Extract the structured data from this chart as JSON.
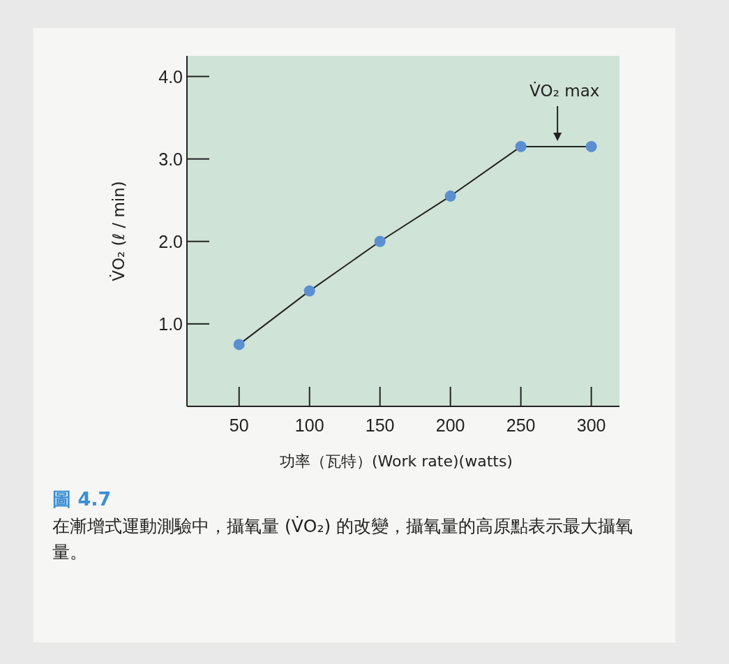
{
  "chart_data": {
    "type": "line",
    "xlabel": "功率（瓦特）(Work rate)(watts)",
    "ylabel": "V̇O₂ (ℓ / min)",
    "x": [
      50,
      100,
      150,
      200,
      250,
      300
    ],
    "series": [
      {
        "color": "#5b8fd0",
        "values": [
          0.75,
          1.4,
          2.0,
          2.55,
          3.15,
          3.15
        ]
      }
    ],
    "xlim": [
      13,
      320
    ],
    "ylim": [
      0,
      4.25
    ],
    "xticks": [
      50,
      100,
      150,
      200,
      250,
      300
    ],
    "yticks": [
      {
        "value": 1,
        "label": "1.0"
      },
      {
        "value": 2,
        "label": "2.0"
      },
      {
        "value": 3,
        "label": "3.0"
      },
      {
        "value": 4,
        "label": "4.0"
      }
    ],
    "marker": "circle",
    "line_style": "solid",
    "annotations": [
      {
        "text": "V̇O₂ max",
        "x": 276,
        "y": 3.15
      },
      "圖 4.7",
      "在漸增式運動測驗中，攝氧量 (V̇O₂) 的改變，攝氧量的高原點表示最大攝氧量。"
    ]
  }
}
